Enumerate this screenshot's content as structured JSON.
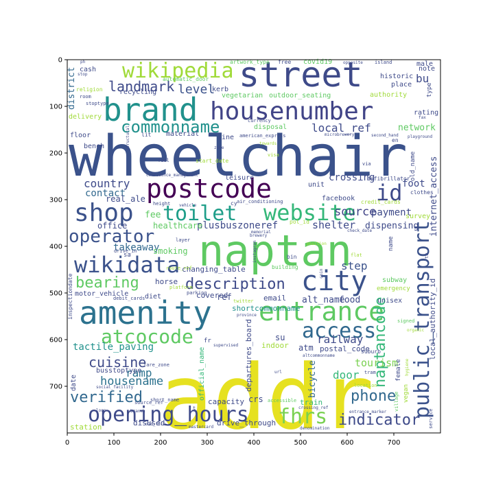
{
  "chart_data": {
    "type": "wordcloud",
    "title": "",
    "xlabel": "",
    "ylabel": "",
    "xlim": [
      0,
      800
    ],
    "ylim": [
      800,
      0
    ],
    "x_ticks": [
      0,
      100,
      200,
      300,
      400,
      500,
      600,
      700
    ],
    "y_ticks": [
      0,
      100,
      200,
      300,
      400,
      500,
      600,
      700
    ],
    "grid": false,
    "legend": "none",
    "colormap": "viridis",
    "words": [
      {
        "text": "addr",
        "color": "#e6e120"
      },
      {
        "text": "wheelchair",
        "color": "#3b528b"
      },
      {
        "text": "naptan",
        "color": "#5ec962"
      },
      {
        "text": "street",
        "color": "#3e4a89"
      },
      {
        "text": "brand",
        "color": "#21918c"
      },
      {
        "text": "amenity",
        "color": "#2c728e"
      },
      {
        "text": "postcode",
        "color": "#440154"
      },
      {
        "text": "housenumber",
        "color": "#414487"
      },
      {
        "text": "city",
        "color": "#3b528b"
      },
      {
        "text": "entrance",
        "color": "#5ec962"
      },
      {
        "text": "public_transport",
        "color": "#3b528b"
      },
      {
        "text": "wikipedia",
        "color": "#a0da39"
      },
      {
        "text": "website",
        "color": "#35b779"
      },
      {
        "text": "opening_hours",
        "color": "#3e4a89"
      },
      {
        "text": "atcocode",
        "color": "#5ec962"
      },
      {
        "text": "wikidata",
        "color": "#3b528b"
      },
      {
        "text": "shop",
        "color": "#3b528b"
      },
      {
        "text": "toilet",
        "color": "#1f9e89"
      },
      {
        "text": "access",
        "color": "#31688e"
      },
      {
        "text": "fhrs",
        "color": "#7ad151"
      },
      {
        "text": "operator",
        "color": "#3b528b"
      },
      {
        "text": "id",
        "color": "#3e4a89"
      },
      {
        "text": "commonname",
        "color": "#21918c"
      },
      {
        "text": "description",
        "color": "#3e4a89"
      },
      {
        "text": "bearing",
        "color": "#5ec962"
      },
      {
        "text": "verified",
        "color": "#31688e"
      },
      {
        "text": "cuisine",
        "color": "#3e4a89"
      },
      {
        "text": "naptancode",
        "color": "#35b779"
      },
      {
        "text": "phone",
        "color": "#31688e"
      },
      {
        "text": "indicator",
        "color": "#3e4a89"
      },
      {
        "text": "landmark",
        "color": "#3e4a89"
      },
      {
        "text": "country",
        "color": "#3e4a89"
      },
      {
        "text": "housename",
        "color": "#2c728e"
      },
      {
        "text": "level",
        "color": "#3b528b"
      },
      {
        "text": "source",
        "color": "#414487"
      },
      {
        "text": "local_ref",
        "color": "#3e4a89"
      },
      {
        "text": "railway",
        "color": "#3e4a89"
      },
      {
        "text": "shelter",
        "color": "#3e4a89"
      },
      {
        "text": "tactile_paving",
        "color": "#21918c"
      },
      {
        "text": "tourism",
        "color": "#7ad151"
      },
      {
        "text": "internet_access",
        "color": "#3e4a89"
      },
      {
        "text": "plusbuszoneref",
        "color": "#3e4a89"
      },
      {
        "text": "takeaway",
        "color": "#31688e"
      },
      {
        "text": "step",
        "color": "#3b528b"
      },
      {
        "text": "ramp",
        "color": "#2c728e"
      },
      {
        "text": "door",
        "color": "#35b779"
      },
      {
        "text": "bu",
        "color": "#3e4a89"
      },
      {
        "text": "crossing",
        "color": "#3e4a89"
      },
      {
        "text": "contact",
        "color": "#31688e"
      },
      {
        "text": "foot",
        "color": "#3e4a89"
      },
      {
        "text": "payment",
        "color": "#3e4a89"
      },
      {
        "text": "dispensing",
        "color": "#3e4a89"
      },
      {
        "text": "alt_name",
        "color": "#3e4a89"
      },
      {
        "text": "food",
        "color": "#3e4a89"
      },
      {
        "text": "district",
        "color": "#31688e"
      },
      {
        "text": "bicycle",
        "color": "#31688e"
      },
      {
        "text": "local_authority_id",
        "color": "#3e4a89"
      },
      {
        "text": "network",
        "color": "#5ec962"
      },
      {
        "text": "fee",
        "color": "#5ec962"
      },
      {
        "text": "real_ale",
        "color": "#3e4a89"
      },
      {
        "text": "office",
        "color": "#3e4a89"
      },
      {
        "text": "healthcare",
        "color": "#5ec962"
      },
      {
        "text": "smoking",
        "color": "#5ec962"
      },
      {
        "text": "changing_table",
        "color": "#3e4a89"
      },
      {
        "text": "horse",
        "color": "#3e4a89"
      },
      {
        "text": "covered",
        "color": "#3e4a89"
      },
      {
        "text": "ref",
        "color": "#3e4a89"
      },
      {
        "text": "email",
        "color": "#3e4a89"
      },
      {
        "text": "shortcommonname",
        "color": "#21918c"
      },
      {
        "text": "departures_board",
        "color": "#3e4a89"
      },
      {
        "text": "su",
        "color": "#3e4a89"
      },
      {
        "text": "indoor",
        "color": "#a0da39"
      },
      {
        "text": "atm",
        "color": "#3e4a89"
      },
      {
        "text": "postal_code",
        "color": "#3e4a89"
      },
      {
        "text": "official_name",
        "color": "#35b779"
      },
      {
        "text": "crs",
        "color": "#3e4a89"
      },
      {
        "text": "capacity",
        "color": "#3e4a89"
      },
      {
        "text": "train",
        "color": "#35b779"
      },
      {
        "text": "drive_through",
        "color": "#3e4a89"
      },
      {
        "text": "disused",
        "color": "#3e4a89"
      },
      {
        "text": "station",
        "color": "#a0da39"
      },
      {
        "text": "motor_vehicle",
        "color": "#3e4a89"
      },
      {
        "text": "diet",
        "color": "#3e4a89"
      },
      {
        "text": "busstoptype",
        "color": "#3e4a89"
      },
      {
        "text": "date",
        "color": "#3e4a89"
      },
      {
        "text": "bench",
        "color": "#3e4a89"
      },
      {
        "text": "floor",
        "color": "#3e4a89"
      },
      {
        "text": "delivery",
        "color": "#a0da39"
      },
      {
        "text": "cash",
        "color": "#3e4a89"
      },
      {
        "text": "material",
        "color": "#3e4a89"
      },
      {
        "text": "vegetarian",
        "color": "#5ec962"
      },
      {
        "text": "outdoor_seating",
        "color": "#5ec962"
      },
      {
        "text": "recycling",
        "color": "#3e4a89"
      },
      {
        "text": "kerb",
        "color": "#3e4a89"
      },
      {
        "text": "line",
        "color": "#3e4a89"
      },
      {
        "text": "disposal",
        "color": "#5ec962"
      },
      {
        "text": "leisure",
        "color": "#3e4a89"
      },
      {
        "text": "unit",
        "color": "#3e4a89"
      },
      {
        "text": "facebook",
        "color": "#3e4a89"
      },
      {
        "text": "survey",
        "color": "#a0da39"
      },
      {
        "text": "historic",
        "color": "#3e4a89"
      },
      {
        "text": "place",
        "color": "#3e4a89"
      },
      {
        "text": "authority",
        "color": "#a0da39"
      },
      {
        "text": "male",
        "color": "#3e4a89"
      },
      {
        "text": "note",
        "color": "#3e4a89"
      },
      {
        "text": "type",
        "color": "#3e4a89"
      },
      {
        "text": "rating",
        "color": "#3e4a89"
      },
      {
        "text": "old_name",
        "color": "#3e4a89"
      },
      {
        "text": "name",
        "color": "#3e4a89"
      },
      {
        "text": "subway",
        "color": "#5ec962"
      },
      {
        "text": "emergency",
        "color": "#a0da39"
      },
      {
        "text": "unisex",
        "color": "#3e4a89"
      },
      {
        "text": "female",
        "color": "#3e4a89"
      },
      {
        "text": "vegan",
        "color": "#a0da39"
      },
      {
        "text": "covid19",
        "color": "#5ec962"
      },
      {
        "text": "free",
        "color": "#3e4a89"
      },
      {
        "text": "artwork_type",
        "color": "#5ec962"
      },
      {
        "text": "automatic_door",
        "color": "#5ec962"
      },
      {
        "text": "religion",
        "color": "#a0da39"
      },
      {
        "text": "room",
        "color": "#3e4a89"
      },
      {
        "text": "stoptype",
        "color": "#3e4a89"
      },
      {
        "text": "currency",
        "color": "#3e4a89"
      },
      {
        "text": "american_express",
        "color": "#3e4a89"
      },
      {
        "text": "microbrewery",
        "color": "#3e4a89"
      },
      {
        "text": "second_hand",
        "color": "#3e4a89"
      },
      {
        "text": "towards",
        "color": "#a0da39"
      },
      {
        "text": "zone",
        "color": "#3e4a89"
      },
      {
        "text": "start_date",
        "color": "#a0da39"
      },
      {
        "text": "fuel",
        "color": "#3e4a89"
      },
      {
        "text": "visa",
        "color": "#a0da39"
      },
      {
        "text": "confidence_management",
        "color": "#3e4a89"
      },
      {
        "text": "defibrillator",
        "color": "#3e4a89"
      },
      {
        "text": "credit_cards",
        "color": "#a0da39"
      },
      {
        "text": "air_conditioning",
        "color": "#3e4a89"
      },
      {
        "text": "height",
        "color": "#3e4a89"
      },
      {
        "text": "vehicle",
        "color": "#3e4a89"
      },
      {
        "text": "pol_id",
        "color": "#a0da39"
      },
      {
        "text": "memorial",
        "color": "#3e4a89"
      },
      {
        "text": "check_date",
        "color": "#3e4a89"
      },
      {
        "text": "clothes",
        "color": "#3e4a89"
      },
      {
        "text": "playground",
        "color": "#3e4a89"
      },
      {
        "text": "fax",
        "color": "#3e4a89"
      },
      {
        "text": "layer",
        "color": "#3e4a89"
      },
      {
        "text": "drive_in",
        "color": "#3e4a89"
      },
      {
        "text": "route_ref",
        "color": "#a0da39"
      },
      {
        "text": "platform",
        "color": "#a0da39"
      },
      {
        "text": "building",
        "color": "#5ec962"
      },
      {
        "text": "bin",
        "color": "#3e4a89"
      },
      {
        "text": "flat",
        "color": "#a0da39"
      },
      {
        "text": "instagram",
        "color": "#3e4a89"
      },
      {
        "text": "position",
        "color": "#a0da39"
      },
      {
        "text": "twitter",
        "color": "#a0da39"
      },
      {
        "text": "province",
        "color": "#3e4a89"
      },
      {
        "text": "inspectiondate",
        "color": "#3e4a89"
      },
      {
        "text": "debit_cards",
        "color": "#3e4a89"
      },
      {
        "text": "parking",
        "color": "#3e4a89"
      },
      {
        "text": "signed",
        "color": "#5ec962"
      },
      {
        "text": "organic",
        "color": "#a0da39"
      },
      {
        "text": "hygiene",
        "color": "#a0da39"
      },
      {
        "text": "url",
        "color": "#3e4a89"
      },
      {
        "text": "tram",
        "color": "#3e4a89"
      },
      {
        "text": "location",
        "color": "#a0da39"
      },
      {
        "text": "suburb",
        "color": "#3e4a89"
      },
      {
        "text": "fare_zone",
        "color": "#3e4a89"
      },
      {
        "text": "short_name",
        "color": "#3e4a89"
      },
      {
        "text": "supervised",
        "color": "#3e4a89"
      },
      {
        "text": "social_facility",
        "color": "#3e4a89"
      },
      {
        "text": "source_ref",
        "color": "#3e4a89"
      },
      {
        "text": "old_fhrs",
        "color": "#3e4a89"
      },
      {
        "text": "branch",
        "color": "#3e4a89"
      },
      {
        "text": "loop",
        "color": "#3e4a89"
      },
      {
        "text": "accessible",
        "color": "#5ec962"
      },
      {
        "text": "crossing_ref",
        "color": "#3e4a89"
      },
      {
        "text": "entrance_marker",
        "color": "#3e4a89"
      },
      {
        "text": "denomination",
        "color": "#3e4a89"
      },
      {
        "text": "village",
        "color": "#5ec962"
      },
      {
        "text": "service",
        "color": "#3e4a89"
      },
      {
        "text": "island",
        "color": "#3e4a89"
      },
      {
        "text": "opposite",
        "color": "#3e4a89"
      },
      {
        "text": "ph",
        "color": "#3e4a89"
      },
      {
        "text": "stop",
        "color": "#3e4a89"
      },
      {
        "text": "sa",
        "color": "#3e4a89"
      },
      {
        "text": "th",
        "color": "#3e4a89"
      },
      {
        "text": "fr",
        "color": "#3e4a89"
      },
      {
        "text": "en",
        "color": "#3e4a89"
      },
      {
        "text": "cy",
        "color": "#3e4a89"
      },
      {
        "text": "via",
        "color": "#3e4a89"
      },
      {
        "text": "lit",
        "color": "#3e4a89"
      },
      {
        "text": "coin",
        "color": "#3e4a89"
      },
      {
        "text": "t",
        "color": "#3e4a89"
      },
      {
        "text": "mastercard",
        "color": "#3e4a89"
      },
      {
        "text": "altcommonname",
        "color": "#3e4a89"
      },
      {
        "text": "structural",
        "color": "#3e4a89"
      },
      {
        "text": "brewery",
        "color": "#3e4a89"
      }
    ]
  }
}
